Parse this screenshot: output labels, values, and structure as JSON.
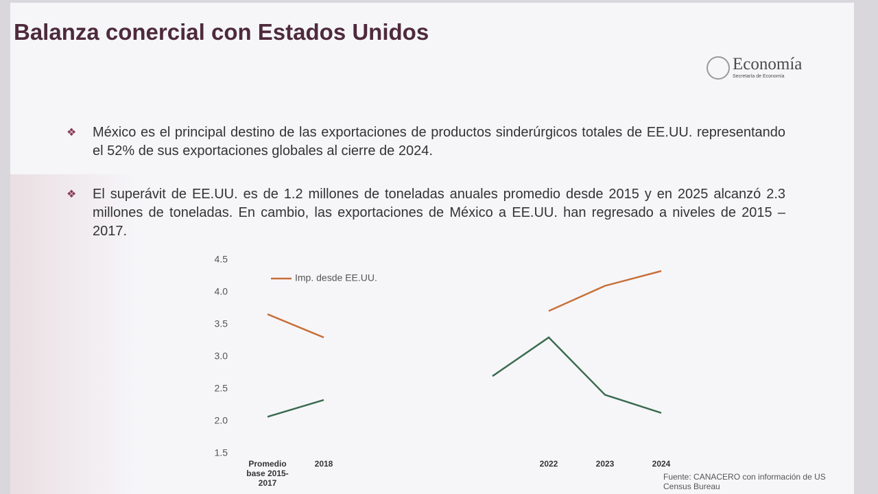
{
  "header": {
    "title": "Balanza conercial con Estados Unidos",
    "logo": "Economía",
    "logo_subtitle": "Secretaría de Economía"
  },
  "bullets": [
    "México es el principal destino de las exportaciones de productos sinderúrgicos totales de EE.UU. representando el 52% de sus exportaciones globales al cierre de 2024.",
    "El superávit de EE.UU. es de 1.2 millones de toneladas anuales promedio desde 2015 y en 2025 alcanzó 2.3 millones de toneladas. En cambio, las exportaciones de México a EE.UU. han regresado a niveles de 2015 – 2017."
  ],
  "chart_data": {
    "type": "line",
    "categories": [
      "Promedio base 2015-2017",
      "2018",
      null,
      null,
      null,
      "2022",
      "2023",
      "2024"
    ],
    "series": [
      {
        "name": "Imp. desde EE.UU.",
        "color": "#c8703a",
        "values": [
          3.66,
          3.3,
          null,
          null,
          null,
          3.71,
          4.1,
          4.33
        ]
      },
      {
        "color": "#3a6b4f",
        "values": [
          2.07,
          2.33,
          null,
          null,
          2.7,
          3.3,
          2.41,
          2.13
        ]
      }
    ],
    "ylim": [
      1.5,
      4.5
    ],
    "yticks": [
      1.5,
      {
        "value": 2,
        "label": "2.0"
      },
      2.5,
      {
        "value": 3,
        "label": "3.0"
      },
      3.5,
      {
        "value": 4,
        "label": "4.0"
      },
      4.5
    ],
    "grid": false
  },
  "source": "Fuente: CANACERO con información de US Census Bureau"
}
